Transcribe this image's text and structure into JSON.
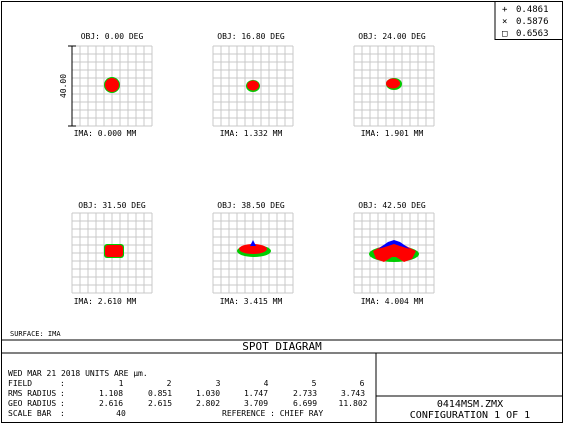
{
  "legend": [
    {
      "symbol": "+",
      "label": "0.4861",
      "color": "#0000ff"
    },
    {
      "symbol": "×",
      "label": "0.5876",
      "color": "#00cc00"
    },
    {
      "symbol": "□",
      "label": "0.6563",
      "color": "#ff0000"
    }
  ],
  "spots": [
    {
      "obj": "OBJ: 0.00 DEG",
      "ima": "IMA: 0.000 MM"
    },
    {
      "obj": "OBJ: 16.80 DEG",
      "ima": "IMA: 1.332 MM"
    },
    {
      "obj": "OBJ: 24.00 DEG",
      "ima": "IMA: 1.901 MM"
    },
    {
      "obj": "OBJ: 31.50 DEG",
      "ima": "IMA: 2.610 MM"
    },
    {
      "obj": "OBJ: 38.50 DEG",
      "ima": "IMA: 3.415 MM"
    },
    {
      "obj": "OBJ: 42.50 DEG",
      "ima": "IMA: 4.004 MM"
    }
  ],
  "scale_label": "40.00",
  "surface": "SURFACE: IMA",
  "title": "SPOT DIAGRAM",
  "info": {
    "line1": "WED MAR 21 2018  UNITS ARE µm.",
    "field_label": "FIELD",
    "field_values": [
      "1",
      "2",
      "3",
      "4",
      "5",
      "6"
    ],
    "rms_label": "RMS RADIUS",
    "rms_values": [
      "1.108",
      "0.851",
      "1.030",
      "1.747",
      "2.733",
      "3.743"
    ],
    "geo_label": "GEO RADIUS",
    "geo_values": [
      "2.616",
      "2.615",
      "2.802",
      "3.709",
      "6.699",
      "11.802"
    ],
    "scalebar_label": "SCALE BAR",
    "scalebar_value": "40",
    "reference": "REFERENCE   : CHIEF RAY"
  },
  "file": "0414MSM.ZMX",
  "configuration": "CONFIGURATION 1 OF 1"
}
